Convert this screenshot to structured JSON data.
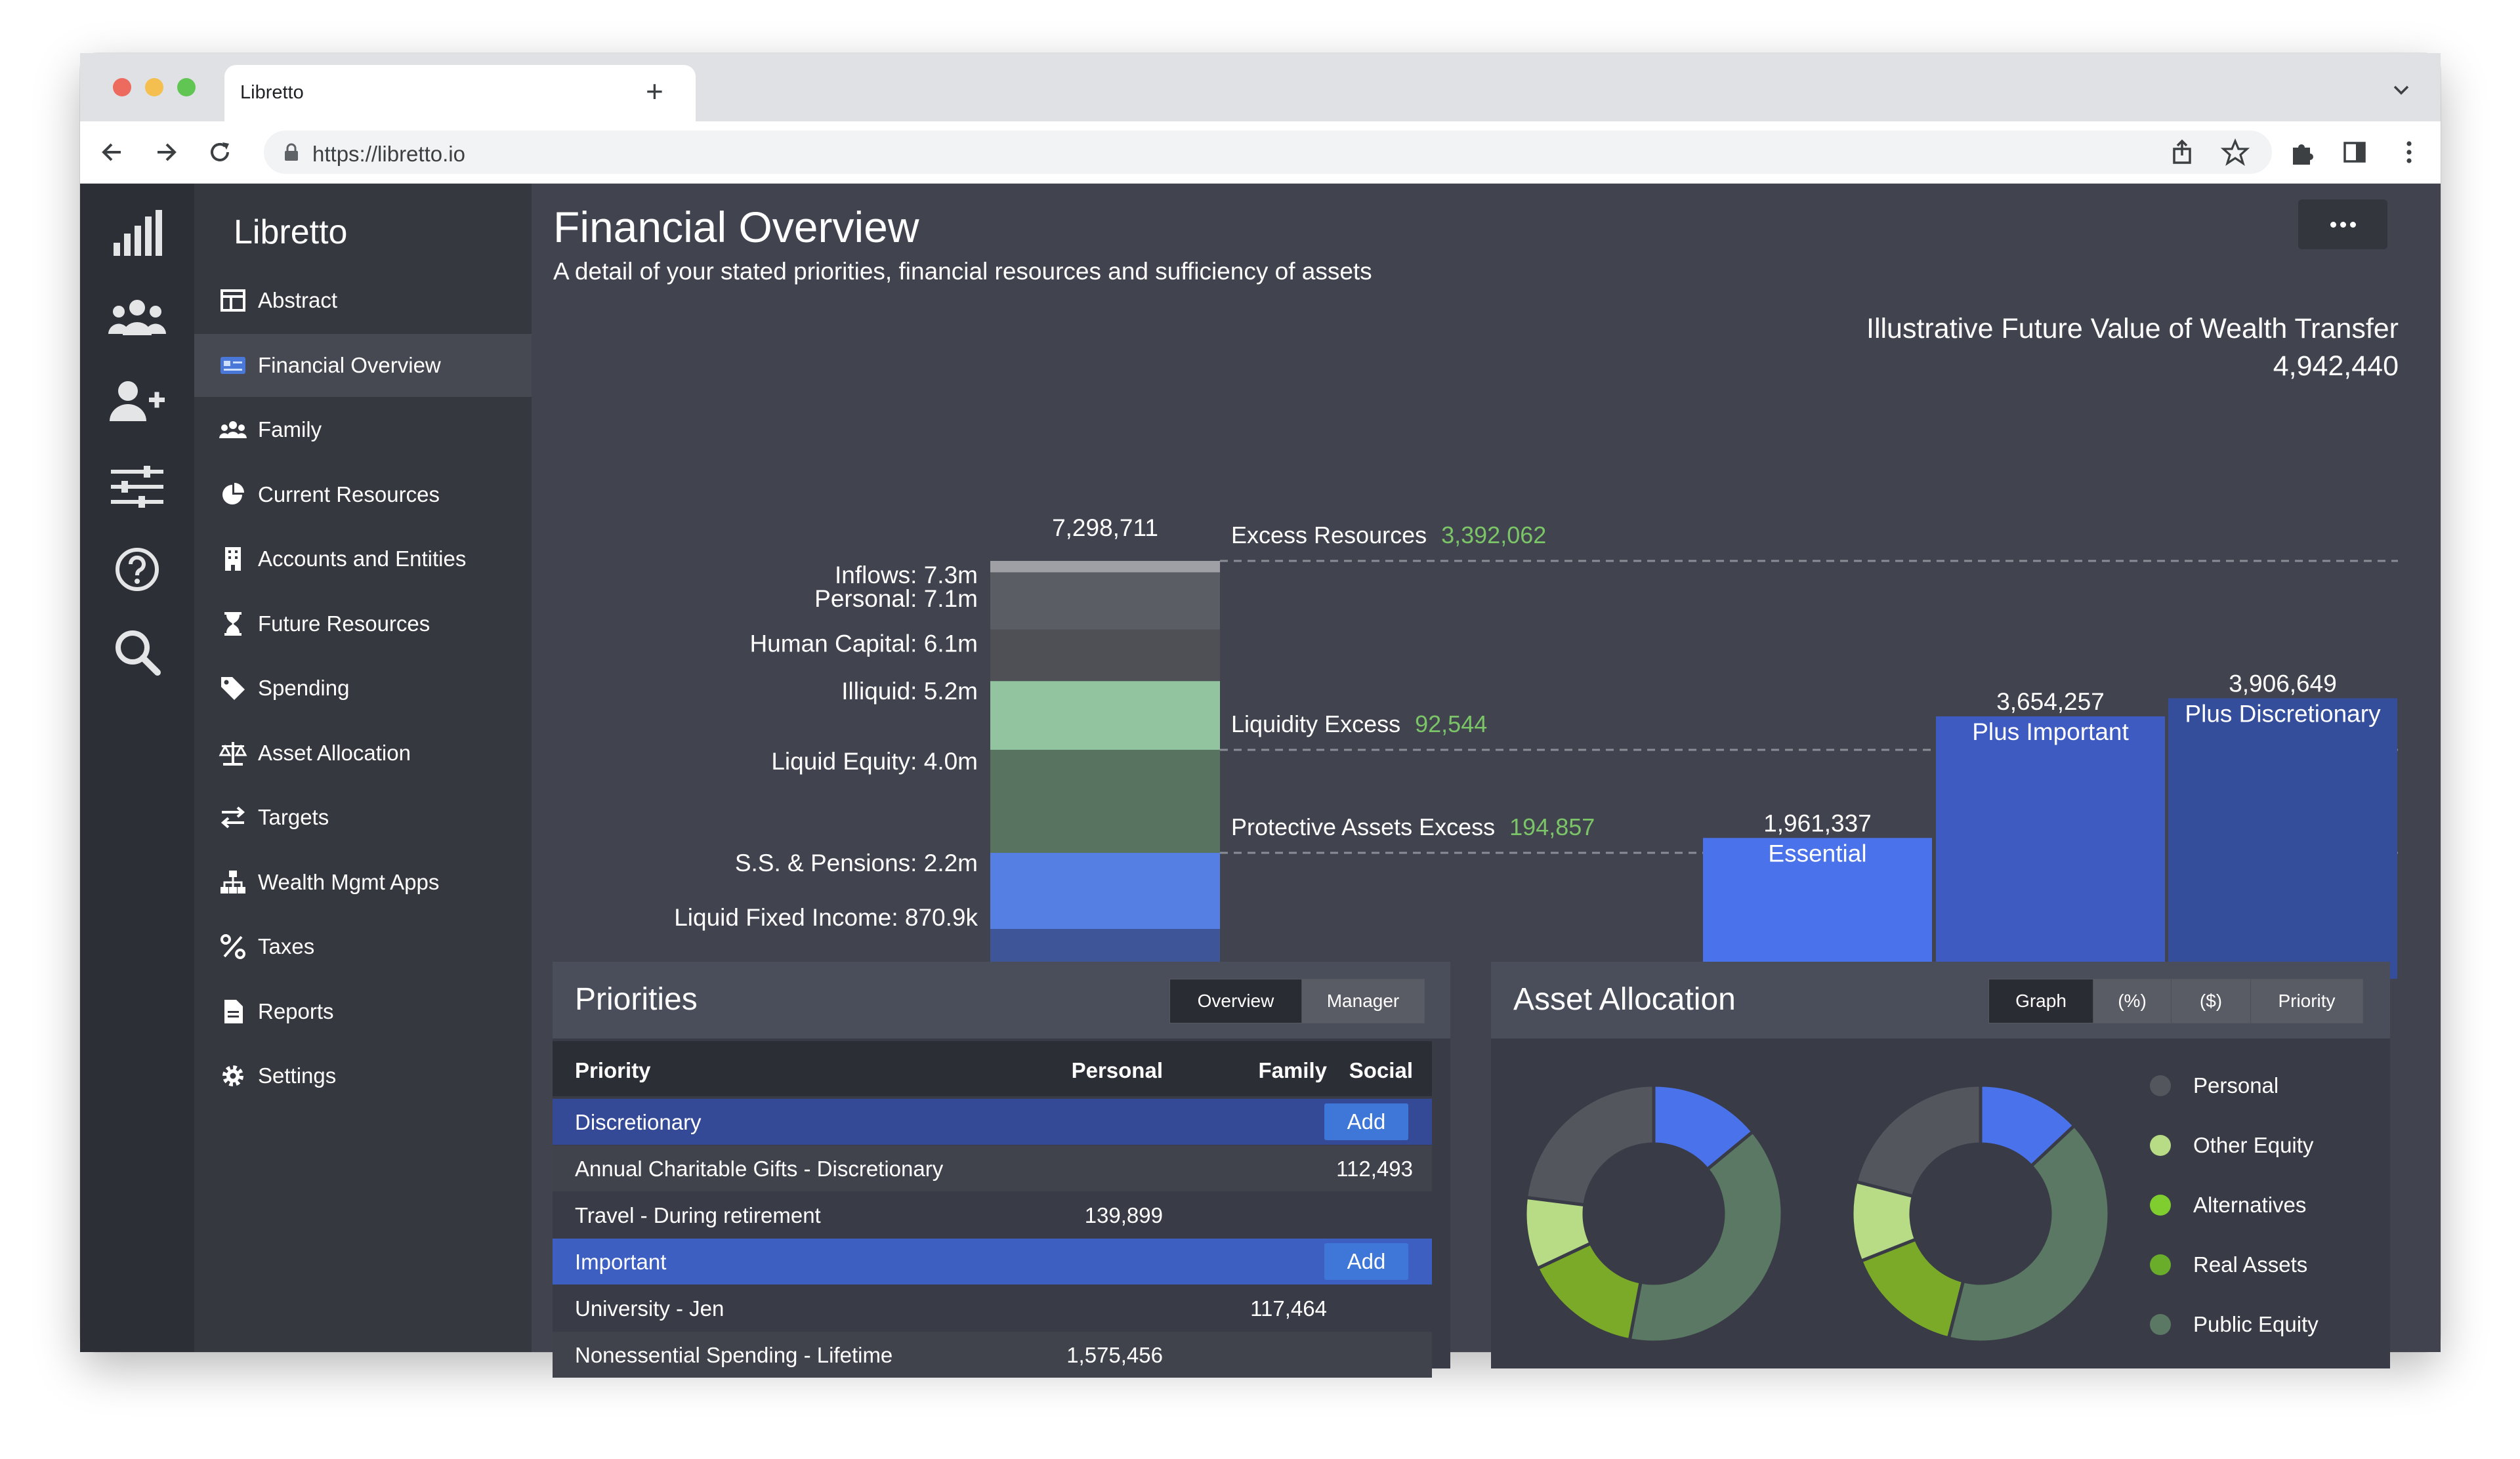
{
  "browser": {
    "tab_title": "Libretto",
    "url": "https://libretto.io"
  },
  "app": {
    "brand": "Libretto",
    "rail_icons": [
      "bar-chart-logo-icon",
      "users-icon",
      "add-user-icon",
      "sliders-icon",
      "help-icon",
      "search-icon"
    ],
    "nav": [
      {
        "label": "Abstract",
        "icon": "layout-icon"
      },
      {
        "label": "Financial Overview",
        "icon": "id-card-icon",
        "active": true
      },
      {
        "label": "Family",
        "icon": "family-icon"
      },
      {
        "label": "Current Resources",
        "icon": "pie-icon"
      },
      {
        "label": "Accounts and Entities",
        "icon": "building-icon"
      },
      {
        "label": "Future Resources",
        "icon": "hourglass-icon"
      },
      {
        "label": "Spending",
        "icon": "tag-icon"
      },
      {
        "label": "Asset Allocation",
        "icon": "scale-icon"
      },
      {
        "label": "Targets",
        "icon": "exchange-icon"
      },
      {
        "label": "Wealth Mgmt Apps",
        "icon": "sitemap-icon"
      },
      {
        "label": "Taxes",
        "icon": "percent-icon"
      },
      {
        "label": "Reports",
        "icon": "document-icon"
      },
      {
        "label": "Settings",
        "icon": "gear-icon"
      }
    ]
  },
  "page": {
    "title": "Financial Overview",
    "subtitle": "A detail of your stated priorities, financial resources and sufficiency of assets"
  },
  "chart_data": [
    {
      "type": "bar",
      "subtype": "stacked-resource-column",
      "total_label": "7,298,711",
      "segments": [
        {
          "label": "Inflows: 7.3m",
          "value_m": 7.3,
          "color": "#9fa0a5"
        },
        {
          "label": "Personal: 7.1m",
          "value_m": 7.1,
          "color": "#5b5d64"
        },
        {
          "label": "Human Capital: 6.1m",
          "value_m": 6.1,
          "color": "#4e5056"
        },
        {
          "label": "Illiquid: 5.2m",
          "value_m": 5.2,
          "color": "#93c4a0"
        },
        {
          "label": "Liquid Equity: 4.0m",
          "value_m": 4.0,
          "color": "#58735f"
        },
        {
          "label": "S.S. & Pensions: 2.2m",
          "value_m": 2.2,
          "color": "#567fe3"
        },
        {
          "label": "Liquid Fixed Income: 870.9k",
          "value_m": 0.8709,
          "color": "#3e5597"
        }
      ],
      "excess_lines": [
        {
          "label": "Excess Resources",
          "value": "3,392,062",
          "level_m": 7.3
        },
        {
          "label": "Liquidity Excess",
          "value": "92,544",
          "level_m": 4.0
        },
        {
          "label": "Protective Assets Excess",
          "value": "194,857",
          "level_m": 2.2
        }
      ],
      "wealth_transfer": {
        "title": "Illustrative Future Value of Wealth Transfer",
        "value": "4,942,440"
      },
      "priority_bars": [
        {
          "label": "Essential",
          "value_label": "1,961,337",
          "value": 1961337,
          "color": "#4a72ea"
        },
        {
          "label": "Plus Important",
          "value_label": "3,654,257",
          "value": 3654257,
          "color": "#3e5bc2"
        },
        {
          "label": "Plus Discretionary",
          "value_label": "3,906,649",
          "value": 3906649,
          "color": "#354e9b"
        }
      ],
      "colors": {
        "excess_value": "#7bc467",
        "dashed_line": "#8a8d95"
      }
    },
    {
      "type": "pie",
      "subtype": "donut-pair",
      "donuts": [
        {
          "slices": [
            {
              "name": "Personal",
              "value": 23,
              "color": "#54565e"
            },
            {
              "name": "Real Assets",
              "value": 14,
              "color": "#4a72ea"
            },
            {
              "name": "Public Equity",
              "value": 39,
              "color": "#5a7863"
            },
            {
              "name": "Alternatives",
              "value": 15,
              "color": "#7ba928"
            },
            {
              "name": "Other Equity",
              "value": 9,
              "color": "#b8db86"
            }
          ]
        },
        {
          "slices": [
            {
              "name": "Personal",
              "value": 21,
              "color": "#54565e"
            },
            {
              "name": "Real Assets",
              "value": 13,
              "color": "#4a72ea"
            },
            {
              "name": "Public Equity",
              "value": 41,
              "color": "#5a7863"
            },
            {
              "name": "Alternatives",
              "value": 15,
              "color": "#7ba928"
            },
            {
              "name": "Other Equity",
              "value": 10,
              "color": "#b8db86"
            }
          ]
        }
      ]
    }
  ],
  "priorities": {
    "title": "Priorities",
    "tabs": [
      {
        "label": "Overview",
        "active": true
      },
      {
        "label": "Manager",
        "active": false
      }
    ],
    "columns": [
      "Priority",
      "Personal",
      "Family",
      "Social"
    ],
    "add_label": "Add",
    "rows": [
      {
        "kind": "group",
        "name": "Discretionary",
        "color": "#354a96"
      },
      {
        "kind": "item",
        "name": "Annual Charitable Gifts - Discretionary",
        "personal": "",
        "family": "",
        "social": "112,493"
      },
      {
        "kind": "item",
        "name": "Travel - During retirement",
        "personal": "139,899",
        "family": "",
        "social": ""
      },
      {
        "kind": "group",
        "name": "Important",
        "color": "#3c5fc1"
      },
      {
        "kind": "item",
        "name": "University - Jen",
        "personal": "",
        "family": "117,464",
        "social": ""
      },
      {
        "kind": "item",
        "name": "Nonessential Spending - Lifetime",
        "personal": "1,575,456",
        "family": "",
        "social": ""
      }
    ]
  },
  "allocation": {
    "title": "Asset Allocation",
    "tabs": [
      {
        "label": "Graph",
        "active": true
      },
      {
        "label": "(%)",
        "active": false
      },
      {
        "label": "($)",
        "active": false
      },
      {
        "label": "Priority",
        "active": false
      }
    ],
    "legend": [
      {
        "name": "Personal",
        "color": "#54565e"
      },
      {
        "name": "Other Equity",
        "color": "#b8db86"
      },
      {
        "name": "Alternatives",
        "color": "#7fcd2f"
      },
      {
        "name": "Real Assets",
        "color": "#6aad2b"
      },
      {
        "name": "Public Equity",
        "color": "#5a7863"
      }
    ]
  }
}
